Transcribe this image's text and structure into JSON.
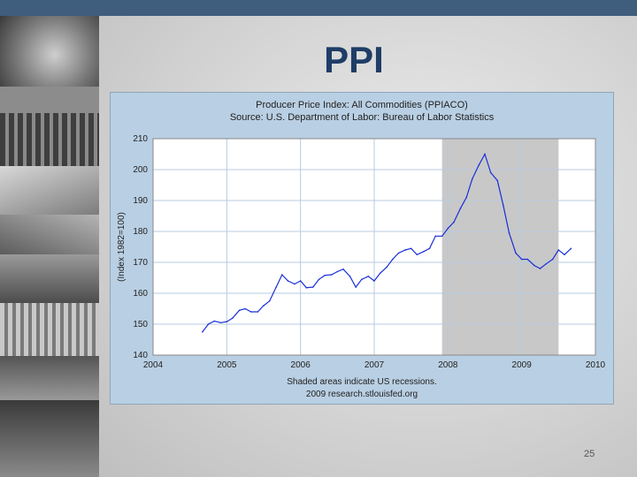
{
  "slide": {
    "title": "PPI",
    "page_number": "25"
  },
  "chart_data": {
    "type": "line",
    "title": "Producer Price Index: All Commodities (PPIACO)",
    "subtitle": "Source: U.S. Department of Labor: Bureau of Labor Statistics",
    "ylabel": "(Index 1982=100)",
    "xlabel": "",
    "footnote_1": "Shaded areas indicate US recessions.",
    "footnote_2": "2009 research.stlouisfed.org",
    "xlim": [
      2004,
      2010
    ],
    "ylim": [
      140,
      210
    ],
    "x_ticks": [
      "2004",
      "2005",
      "2006",
      "2007",
      "2008",
      "2009",
      "2010"
    ],
    "y_ticks": [
      "140",
      "150",
      "160",
      "170",
      "180",
      "190",
      "200",
      "210"
    ],
    "grid": true,
    "recessions": [
      [
        2007.92,
        2009.5
      ]
    ],
    "series": [
      {
        "color": "#1a2fd6",
        "x": [
          2004.67,
          2004.75,
          2004.83,
          2004.92,
          2005.0,
          2005.08,
          2005.17,
          2005.25,
          2005.33,
          2005.42,
          2005.5,
          2005.58,
          2005.67,
          2005.75,
          2005.83,
          2005.92,
          2006.0,
          2006.08,
          2006.17,
          2006.25,
          2006.33,
          2006.42,
          2006.5,
          2006.58,
          2006.67,
          2006.75,
          2006.83,
          2006.92,
          2007.0,
          2007.08,
          2007.17,
          2007.25,
          2007.33,
          2007.42,
          2007.5,
          2007.58,
          2007.67,
          2007.75,
          2007.83,
          2007.92,
          2008.0,
          2008.08,
          2008.17,
          2008.25,
          2008.33,
          2008.42,
          2008.5,
          2008.58,
          2008.67,
          2008.75,
          2008.83,
          2008.92,
          2009.0,
          2009.08,
          2009.17,
          2009.25,
          2009.33,
          2009.42,
          2009.5,
          2009.58,
          2009.67
        ],
        "values": [
          147.5,
          150.0,
          151.0,
          150.5,
          150.8,
          152.0,
          154.5,
          155.0,
          154.0,
          154.0,
          156.0,
          157.5,
          162.0,
          166.0,
          164.0,
          163.0,
          164.0,
          161.8,
          162.0,
          164.5,
          165.8,
          166.0,
          167.0,
          167.8,
          165.5,
          162.0,
          164.5,
          165.5,
          164.0,
          166.5,
          168.5,
          171.0,
          173.0,
          174.0,
          174.5,
          172.5,
          173.5,
          174.5,
          178.5,
          178.5,
          181.0,
          183.0,
          187.5,
          191.0,
          197.0,
          201.5,
          205.0,
          199.0,
          196.5,
          188.5,
          179.5,
          173.0,
          171.0,
          171.0,
          169.0,
          168.0,
          169.5,
          171.0,
          174.0,
          172.5,
          174.5
        ]
      }
    ]
  }
}
